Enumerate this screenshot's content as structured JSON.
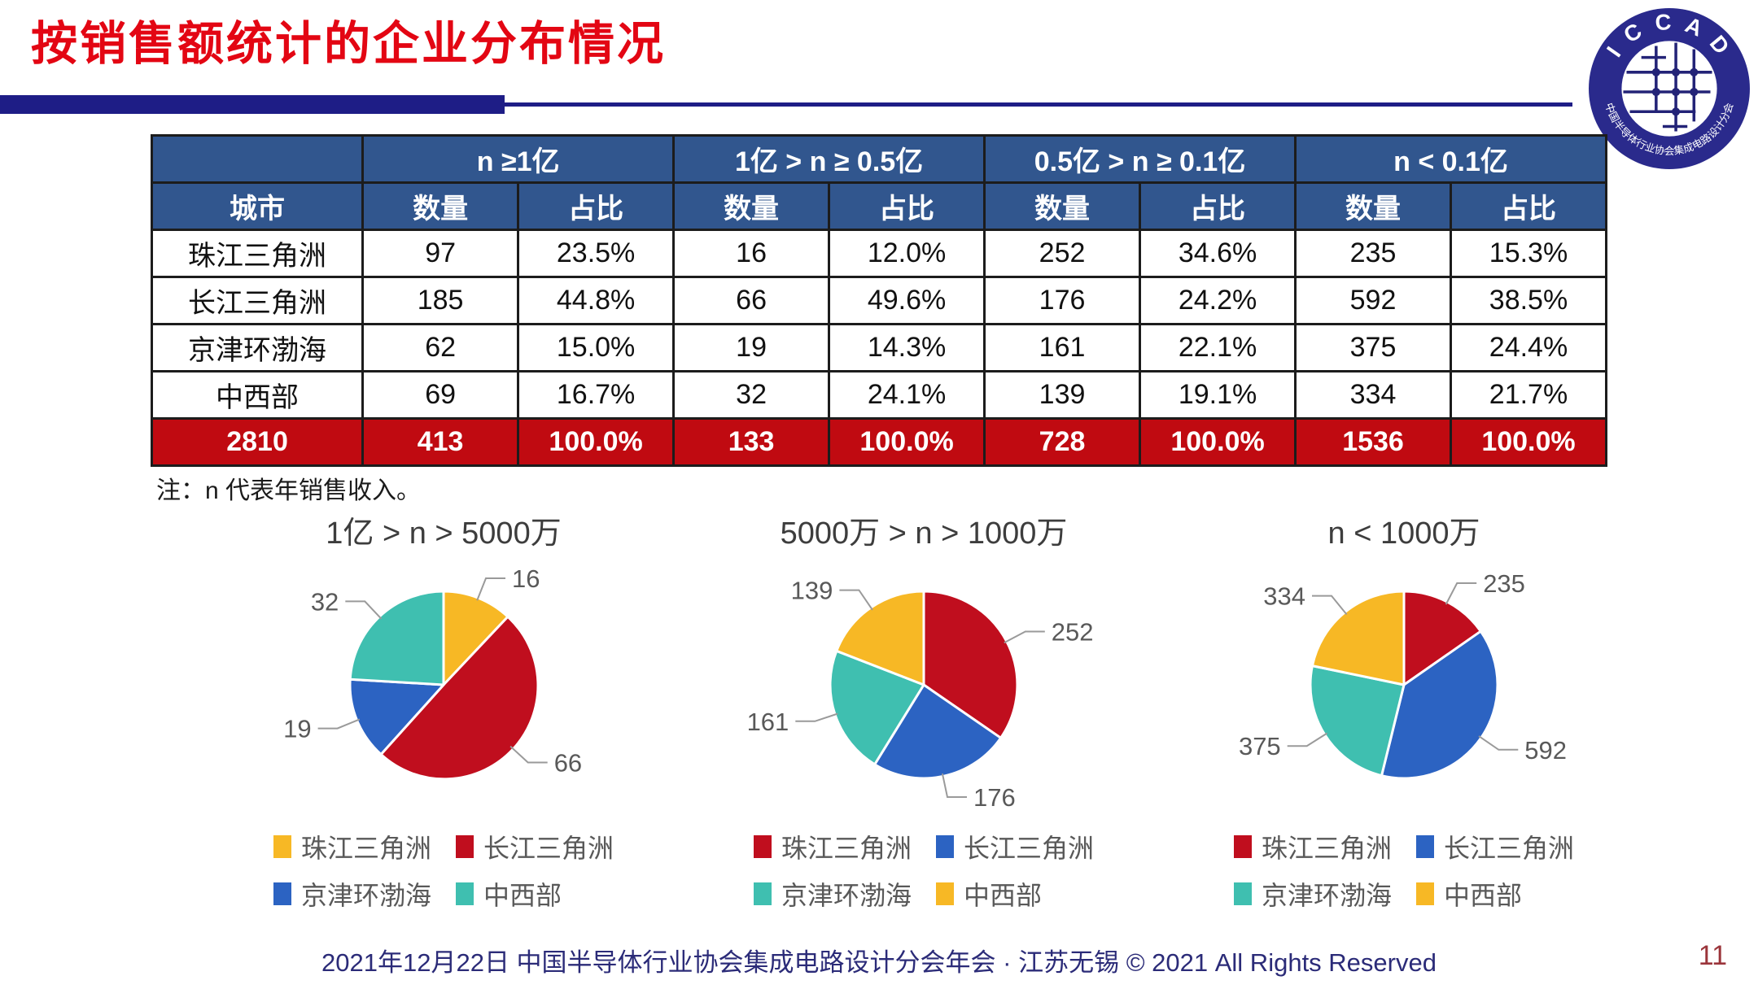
{
  "header": {
    "title": "按销售额统计的企业分布情况",
    "logo": {
      "arc_top": "I C C A D",
      "arc_bottom": "中国半导体行业协会集成电路设计分会"
    }
  },
  "table": {
    "city_header": "城市",
    "group_headers": [
      "n ≥1亿",
      "1亿 > n ≥ 0.5亿",
      "0.5亿 > n ≥ 0.1亿",
      "n < 0.1亿"
    ],
    "sub_headers": [
      "数量",
      "占比"
    ],
    "rows": [
      {
        "city": "珠江三角洲",
        "values": [
          "97",
          "23.5%",
          "16",
          "12.0%",
          "252",
          "34.6%",
          "235",
          "15.3%"
        ]
      },
      {
        "city": "长江三角洲",
        "values": [
          "185",
          "44.8%",
          "66",
          "49.6%",
          "176",
          "24.2%",
          "592",
          "38.5%"
        ]
      },
      {
        "city": "京津环渤海",
        "values": [
          "62",
          "15.0%",
          "19",
          "14.3%",
          "161",
          "22.1%",
          "375",
          "24.4%"
        ]
      },
      {
        "city": "中西部",
        "values": [
          "69",
          "16.7%",
          "32",
          "24.1%",
          "139",
          "19.1%",
          "334",
          "21.7%"
        ]
      }
    ],
    "total_row": {
      "city": "2810",
      "values": [
        "413",
        "100.0%",
        "133",
        "100.0%",
        "728",
        "100.0%",
        "1536",
        "100.0%"
      ]
    }
  },
  "note": "注：n 代表年销售收入。",
  "chart_data": [
    {
      "type": "pie",
      "title": "1亿 > n > 5000万",
      "labels": [
        "珠江三角洲",
        "长江三角洲",
        "京津环渤海",
        "中西部"
      ],
      "values": [
        16,
        66,
        19,
        32
      ],
      "colors": [
        "#f7b825",
        "#c00e1e",
        "#2c63c2",
        "#3fbfb0"
      ],
      "legend_position": "bottom",
      "start_angle_deg": 0,
      "direction": "clockwise"
    },
    {
      "type": "pie",
      "title": "5000万 > n > 1000万",
      "labels": [
        "珠江三角洲",
        "长江三角洲",
        "京津环渤海",
        "中西部"
      ],
      "values": [
        252,
        176,
        161,
        139
      ],
      "colors": [
        "#c00e1e",
        "#2c63c2",
        "#3fbfb0",
        "#f7b825"
      ],
      "legend_position": "bottom",
      "start_angle_deg": 0,
      "direction": "clockwise"
    },
    {
      "type": "pie",
      "title": "n < 1000万",
      "labels": [
        "珠江三角洲",
        "长江三角洲",
        "京津环渤海",
        "中西部"
      ],
      "values": [
        235,
        592,
        375,
        334
      ],
      "colors": [
        "#c00e1e",
        "#2c63c2",
        "#3fbfb0",
        "#f7b825"
      ],
      "legend_position": "bottom",
      "start_angle_deg": 0,
      "direction": "clockwise"
    }
  ],
  "footer": {
    "text": "2021年12月22日 中国半导体行业协会集成电路设计分会年会 · 江苏无锡 © 2021 All Rights Reserved",
    "page_number": "11"
  },
  "colors": {
    "title_red": "#e30613",
    "bar_navy": "#1e1d86",
    "table_header_blue": "#31568e",
    "total_row_red": "#c00a11",
    "label_gray": "#595959",
    "leader_line_gray": "#9a9a9a",
    "footer_navy": "#2b2b78",
    "page_number_red": "#9b353b"
  }
}
